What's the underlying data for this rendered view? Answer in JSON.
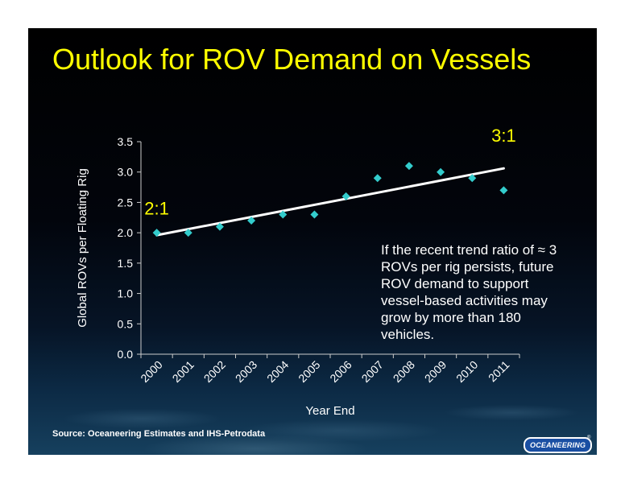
{
  "slide": {
    "title": "Outlook for ROV Demand on Vessels",
    "annotation": "If the recent trend ratio of ≈ 3 ROVs per rig persists, future ROV demand to support vessel-based activities may grow by more than 180 vehicles.",
    "source": "Source:  Oceaneering Estimates and IHS-Petrodata",
    "logo": "OCEANEERING",
    "logo_mark": "®"
  },
  "colors": {
    "title": "#ffff00",
    "marker": "#33cccc",
    "trendline": "#ffffff",
    "text": "#ffffff"
  },
  "chart_data": {
    "type": "scatter",
    "xlabel": "Year End",
    "ylabel": "Global ROVs per Floating Rig",
    "categories": [
      "2000",
      "2001",
      "2002",
      "2003",
      "2004",
      "2005",
      "2006",
      "2007",
      "2008",
      "2009",
      "2010",
      "2011"
    ],
    "series": [
      {
        "values": [
          2.0,
          2.0,
          2.1,
          2.2,
          2.3,
          2.3,
          2.6,
          2.9,
          3.1,
          3.0,
          2.9,
          2.7
        ]
      }
    ],
    "trendline": {
      "start": 1.96,
      "end": 3.06
    },
    "ylim": [
      0,
      3.5
    ],
    "yticks": [
      "0.0",
      "0.5",
      "1.0",
      "1.5",
      "2.0",
      "2.5",
      "3.0",
      "3.5"
    ],
    "annotations": [
      {
        "text": "2:1",
        "category": "2000",
        "y": 2.3
      },
      {
        "text": "3:1",
        "category": "2011",
        "y": 3.5
      }
    ],
    "grid": false,
    "legend": "none"
  }
}
